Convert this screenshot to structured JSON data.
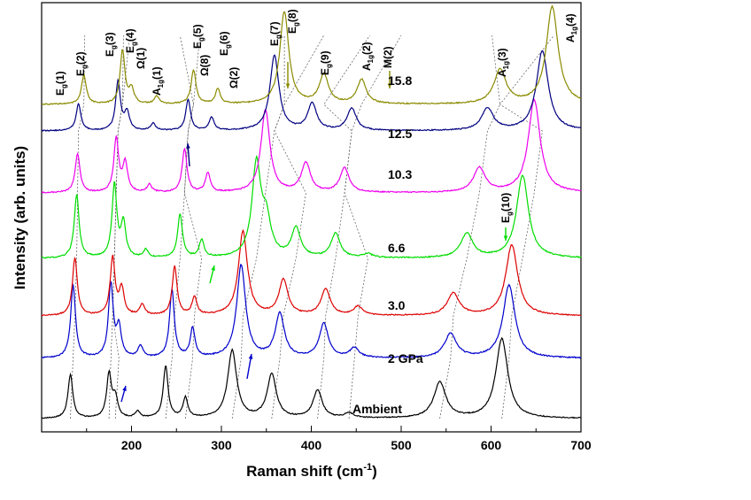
{
  "chart_data": {
    "type": "line",
    "title": "",
    "xlabel": "Raman shift (cm",
    "xlabel_sup": "-1",
    "xlabel_end": ")",
    "ylabel": "Intensity (arb. units)",
    "xlim": [
      100,
      700
    ],
    "x_ticks": [
      200,
      300,
      400,
      500,
      600,
      700
    ],
    "x_tick_labels": [
      "200",
      "300",
      "400",
      "500",
      "600",
      "700"
    ],
    "grid": false,
    "series": [
      {
        "name": "Ambient",
        "color": "#000000",
        "offset": 0,
        "peaks": [
          [
            132,
            0.55
          ],
          [
            175,
            0.55
          ],
          [
            182,
            0.25
          ],
          [
            207,
            0.08
          ],
          [
            238,
            0.65
          ],
          [
            260,
            0.25
          ],
          [
            312,
            0.85
          ],
          [
            356,
            0.55
          ],
          [
            407,
            0.35
          ],
          [
            442,
            0.06
          ],
          [
            543,
            0.45
          ],
          [
            612,
            1.0
          ]
        ]
      },
      {
        "name": "2 GPa",
        "color": "#0000cc",
        "offset": 1,
        "peaks": [
          [
            135,
            0.75
          ],
          [
            177,
            0.75
          ],
          [
            186,
            0.3
          ],
          [
            210,
            0.12
          ],
          [
            245,
            0.7
          ],
          [
            268,
            0.3
          ],
          [
            322,
            0.95
          ],
          [
            365,
            0.45
          ],
          [
            414,
            0.35
          ],
          [
            448,
            0.1
          ],
          [
            555,
            0.25
          ],
          [
            620,
            0.75
          ]
        ]
      },
      {
        "name": "3.0",
        "color": "#dd0000",
        "offset": 2,
        "peaks": [
          [
            137,
            0.65
          ],
          [
            179,
            0.65
          ],
          [
            189,
            0.3
          ],
          [
            212,
            0.12
          ],
          [
            248,
            0.55
          ],
          [
            270,
            0.2
          ],
          [
            324,
            0.95
          ],
          [
            369,
            0.4
          ],
          [
            416,
            0.3
          ],
          [
            452,
            0.1
          ],
          [
            558,
            0.25
          ],
          [
            623,
            0.8
          ]
        ]
      },
      {
        "name": "6.6",
        "color": "#00dd00",
        "offset": 3,
        "peaks": [
          [
            139,
            0.65
          ],
          [
            181,
            0.75
          ],
          [
            191,
            0.35
          ],
          [
            216,
            0.08
          ],
          [
            254,
            0.45
          ],
          [
            278,
            0.18
          ],
          [
            339,
            0.95
          ],
          [
            350,
            0.35
          ],
          [
            383,
            0.3
          ],
          [
            427,
            0.25
          ],
          [
            463,
            0.04
          ],
          [
            573,
            0.25
          ],
          [
            635,
            0.85
          ]
        ]
      },
      {
        "name": "10.3",
        "color": "#ee00ee",
        "offset": 4,
        "peaks": [
          [
            140,
            0.4
          ],
          [
            183,
            0.55
          ],
          [
            193,
            0.3
          ],
          [
            220,
            0.08
          ],
          [
            259,
            0.45
          ],
          [
            285,
            0.2
          ],
          [
            349,
            0.85
          ],
          [
            394,
            0.3
          ],
          [
            437,
            0.25
          ],
          [
            587,
            0.25
          ],
          [
            648,
            0.95
          ]
        ]
      },
      {
        "name": "12.5",
        "color": "#000080",
        "offset": 5,
        "peaks": [
          [
            141,
            0.3
          ],
          [
            185,
            0.55
          ],
          [
            195,
            0.2
          ],
          [
            224,
            0.08
          ],
          [
            263,
            0.35
          ],
          [
            289,
            0.15
          ],
          [
            359,
            0.85
          ],
          [
            401,
            0.3
          ],
          [
            445,
            0.25
          ],
          [
            596,
            0.25
          ],
          [
            657,
            0.9
          ]
        ]
      },
      {
        "name": "15.8",
        "color": "#8a8a00",
        "offset": 6,
        "peaks": [
          [
            147,
            0.3
          ],
          [
            190,
            0.55
          ],
          [
            200,
            0.15
          ],
          [
            228,
            0.08
          ],
          [
            269,
            0.35
          ],
          [
            296,
            0.15
          ],
          [
            370,
            0.95
          ],
          [
            414,
            0.3
          ],
          [
            456,
            0.25
          ],
          [
            610,
            0.35
          ],
          [
            668,
            1.0
          ]
        ]
      }
    ],
    "peak_labels": [
      {
        "base": "E",
        "sub": "g",
        "tail": "(1)"
      },
      {
        "base": "E",
        "sub": "g",
        "tail": "(2)"
      },
      {
        "base": "E",
        "sub": "g",
        "tail": "(3)"
      },
      {
        "base": "E",
        "sub": "g",
        "tail": "(4)"
      },
      {
        "base": "Ω(1)",
        "sub": "",
        "tail": ""
      },
      {
        "base": "A",
        "sub": "1g",
        "tail": "(1)"
      },
      {
        "base": "E",
        "sub": "g",
        "tail": "(5)"
      },
      {
        "base": "Ω(8)",
        "sub": "",
        "tail": ""
      },
      {
        "base": "E",
        "sub": "g",
        "tail": "(6)"
      },
      {
        "base": "Ω(2)",
        "sub": "",
        "tail": ""
      },
      {
        "base": "E",
        "sub": "g",
        "tail": "(7)"
      },
      {
        "base": "E",
        "sub": "g",
        "tail": "(8)"
      },
      {
        "base": "E",
        "sub": "g",
        "tail": "(9)"
      },
      {
        "base": "A",
        "sub": "1g",
        "tail": "(2)"
      },
      {
        "base": "M(2)",
        "sub": "",
        "tail": ""
      },
      {
        "base": "A",
        "sub": "1g",
        "tail": "(3)"
      },
      {
        "base": "A",
        "sub": "1g",
        "tail": "(4)"
      },
      {
        "base": "E",
        "sub": "g",
        "tail": "(10)"
      }
    ]
  }
}
